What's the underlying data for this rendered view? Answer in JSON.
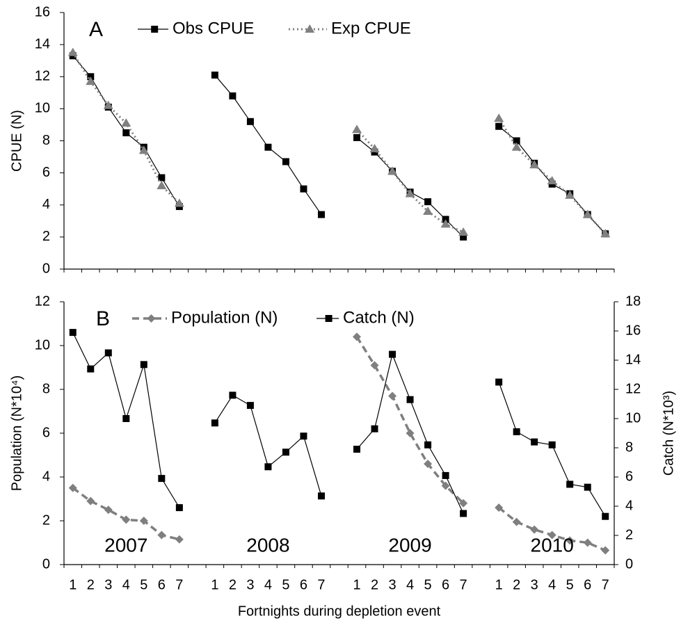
{
  "chart_data": [
    {
      "type": "line",
      "label": "A",
      "ylabel": "CPUE (N)",
      "ylim": [
        0,
        16
      ],
      "yticks": [
        0,
        2,
        4,
        6,
        8,
        10,
        12,
        14,
        16
      ],
      "series": [
        {
          "name": "Obs CPUE",
          "color": "#000000",
          "marker": "square",
          "dash": "solid",
          "values": [
            13.3,
            12.0,
            10.1,
            8.5,
            7.6,
            5.7,
            3.9,
            null,
            12.1,
            10.8,
            9.2,
            7.6,
            6.7,
            5.0,
            3.4,
            null,
            8.2,
            7.3,
            6.1,
            4.8,
            4.2,
            3.1,
            2.0,
            null,
            8.9,
            8.0,
            6.6,
            5.3,
            4.7,
            3.4,
            2.2
          ]
        },
        {
          "name": "Exp CPUE",
          "color": "#808080",
          "marker": "triangle",
          "dash": "dotted",
          "values": [
            13.5,
            11.7,
            10.2,
            9.1,
            7.4,
            5.2,
            4.1,
            null,
            null,
            null,
            null,
            null,
            null,
            null,
            null,
            null,
            8.7,
            7.5,
            6.1,
            4.7,
            3.6,
            2.8,
            2.3,
            null,
            9.4,
            7.6,
            6.5,
            5.5,
            4.6,
            3.4,
            2.2
          ]
        }
      ]
    },
    {
      "type": "line",
      "label": "B",
      "xlabel": "Fortnights during depletion event",
      "ylabel": "Population (N*10⁴)",
      "y2label": "Catch (N*10³)",
      "categories": [
        "1",
        "2",
        "3",
        "4",
        "5",
        "6",
        "7",
        null,
        "1",
        "2",
        "3",
        "4",
        "5",
        "6",
        "7",
        null,
        "1",
        "2",
        "3",
        "4",
        "5",
        "6",
        "7",
        null,
        "1",
        "2",
        "3",
        "4",
        "5",
        "6",
        "7"
      ],
      "ylim": [
        0,
        12
      ],
      "yticks": [
        0,
        2,
        4,
        6,
        8,
        10,
        12
      ],
      "y2lim": [
        0,
        18
      ],
      "y2ticks": [
        0,
        2,
        4,
        6,
        8,
        10,
        12,
        14,
        16,
        18
      ],
      "annotations": [
        "2007",
        "2008",
        "2009",
        "2010"
      ],
      "series": [
        {
          "name": "Population (N)",
          "color": "#7f7f7f",
          "marker": "diamond",
          "dash": "dashed",
          "values": [
            3.5,
            2.9,
            2.5,
            2.05,
            2.0,
            1.35,
            1.15,
            null,
            null,
            null,
            null,
            null,
            null,
            null,
            null,
            null,
            10.4,
            9.1,
            7.7,
            6.0,
            4.6,
            3.6,
            2.8,
            null,
            2.6,
            1.95,
            1.6,
            1.35,
            1.1,
            1.0,
            0.65
          ]
        },
        {
          "name": "Catch (N)",
          "color": "#000000",
          "marker": "square",
          "dash": "solid",
          "axis": "y2",
          "values": [
            15.9,
            13.4,
            14.5,
            10.0,
            13.7,
            5.9,
            3.9,
            null,
            9.7,
            11.6,
            10.9,
            6.7,
            7.7,
            8.8,
            4.7,
            null,
            7.9,
            9.3,
            14.4,
            11.3,
            8.2,
            6.1,
            3.5,
            null,
            12.5,
            9.1,
            8.4,
            8.2,
            5.5,
            5.3,
            3.3
          ]
        }
      ]
    }
  ]
}
